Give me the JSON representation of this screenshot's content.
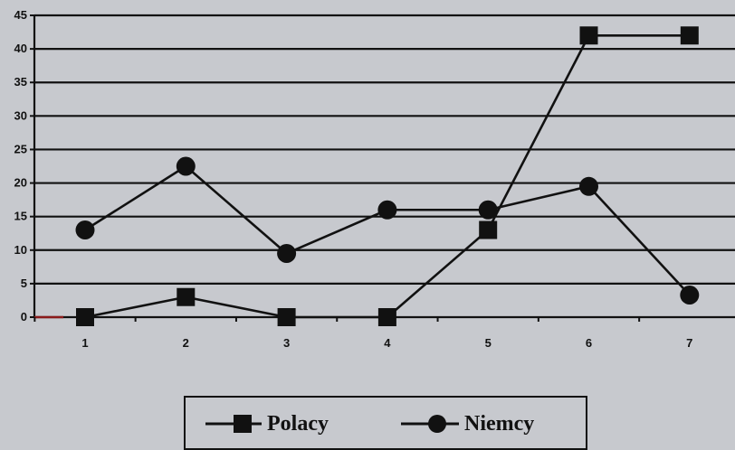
{
  "chart_data": {
    "type": "line",
    "categories": [
      "1",
      "2",
      "3",
      "4",
      "5",
      "6",
      "7"
    ],
    "series": [
      {
        "name": "Polacy",
        "marker": "square",
        "values": [
          0,
          3,
          0,
          0,
          13,
          42,
          42
        ]
      },
      {
        "name": "Niemcy",
        "marker": "circle",
        "values": [
          13,
          22.5,
          9.5,
          16,
          16,
          19.5,
          3.3
        ]
      }
    ],
    "yticks": [
      "0",
      "5",
      "10",
      "15",
      "20",
      "25",
      "30",
      "35",
      "40",
      "45"
    ],
    "ylim": [
      0,
      45
    ],
    "grid": true,
    "legend_position": "bottom-center",
    "colors": {
      "background": "#c7c9ce",
      "line": "#111111",
      "grid": "#111111",
      "baseline_accent": "#8b1a1a"
    }
  }
}
